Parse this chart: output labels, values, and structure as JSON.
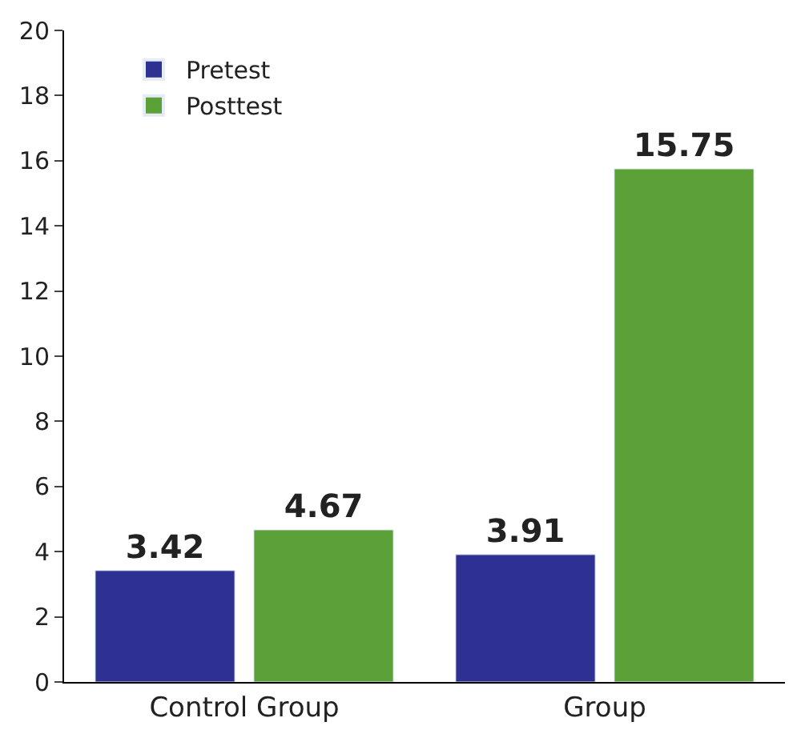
{
  "chart_data": {
    "type": "bar",
    "categories": [
      "Control Group",
      "Group"
    ],
    "series": [
      {
        "name": "Pretest",
        "color": "#2e3192",
        "values": [
          3.42,
          3.91
        ]
      },
      {
        "name": "Posttest",
        "color": "#5ba138",
        "values": [
          4.67,
          15.75
        ]
      }
    ],
    "ylim": [
      0,
      20
    ],
    "yticks": [
      0,
      2,
      4,
      6,
      8,
      10,
      12,
      14,
      16,
      18,
      20
    ],
    "grid": false,
    "legend": "top left",
    "data_labels": true
  }
}
